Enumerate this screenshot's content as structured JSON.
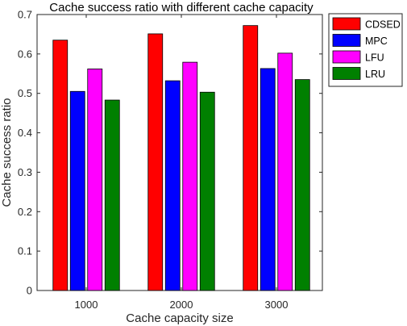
{
  "chart_data": {
    "type": "bar",
    "title": "Cache success ratio with different cache capacity",
    "xlabel": "Cache capacity size",
    "ylabel": "Cache success ratio",
    "categories": [
      "1000",
      "2000",
      "3000"
    ],
    "ylim": [
      0,
      0.7
    ],
    "yticks": [
      "0",
      "0.1",
      "0.2",
      "0.3",
      "0.4",
      "0.5",
      "0.6",
      "0.7"
    ],
    "grid": false,
    "legend_position": "outside-top-right",
    "series": [
      {
        "name": "CDSED",
        "color": "#ff0000",
        "values": [
          0.635,
          0.651,
          0.672
        ]
      },
      {
        "name": "MPC",
        "color": "#0000ff",
        "values": [
          0.505,
          0.532,
          0.563
        ]
      },
      {
        "name": "LFU",
        "color": "#ff00ff",
        "values": [
          0.562,
          0.579,
          0.602
        ]
      },
      {
        "name": "LRU",
        "color": "#008000",
        "values": [
          0.483,
          0.503,
          0.535
        ]
      }
    ]
  }
}
